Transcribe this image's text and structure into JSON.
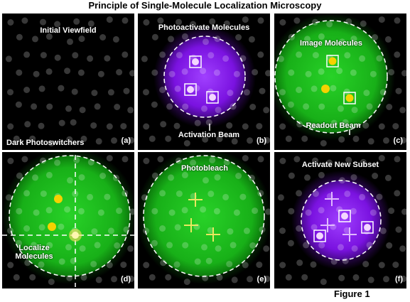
{
  "title": "Principle of Single-Molecule Localization Microscopy",
  "figure_label": "Figure 1",
  "colors": {
    "background": "#000000",
    "dim_molecule": "#3c3c3c",
    "activation_beam": "#8a1ef0",
    "readout_beam": "#1fc21f",
    "active_molecule": "#f5d200",
    "bleach_mark": "#e8e860"
  },
  "panels": [
    {
      "id": "a",
      "letter": "(a)",
      "label_top": "Initial Viewfield",
      "label_bottom": "Dark Photoswitchers",
      "beam": "none"
    },
    {
      "id": "b",
      "letter": "(b)",
      "label_top": "Photoactivate Molecules",
      "label_bottom": "Activation Beam",
      "beam": "purple"
    },
    {
      "id": "c",
      "letter": "(c)",
      "label_top": "Image Molecules",
      "label_bottom": "Readout Beam",
      "beam": "green"
    },
    {
      "id": "d",
      "letter": "(d)",
      "label_top": "",
      "label_bottom_line1": "Localize",
      "label_bottom_line2": "Molecules",
      "beam": "green"
    },
    {
      "id": "e",
      "letter": "(e)",
      "label_top": "Photobleach",
      "label_bottom": "",
      "beam": "green"
    },
    {
      "id": "f",
      "letter": "(f)",
      "label_top": "Activate New Subset",
      "label_bottom": "",
      "beam": "purple"
    }
  ]
}
